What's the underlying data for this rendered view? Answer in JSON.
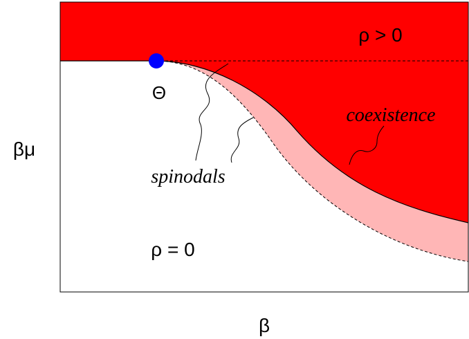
{
  "labels": {
    "upper_phase": "ρ > 0",
    "lower_phase": "ρ = 0",
    "theta": "Θ",
    "coexistence": "coexistence",
    "spinodals": "spinodals",
    "y_axis": "βμ",
    "x_axis": "β"
  }
}
